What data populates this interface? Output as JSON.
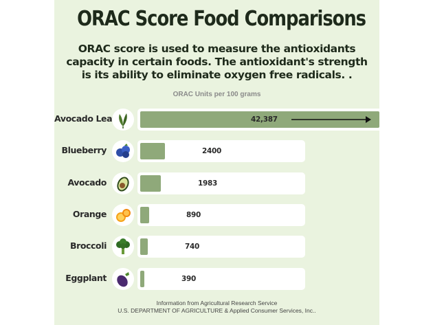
{
  "chart_data": {
    "type": "bar",
    "orientation": "horizontal",
    "title": "ORAC Score Food Comparisons",
    "subtitle": "ORAC score is used to measure the antioxidants capacity in certain foods. The antioxidant's strength is its ability to eliminate oxygen free radicals. .",
    "units_label": "ORAC Units per 100 grams",
    "categories": [
      "Avocado Leaf",
      "Blueberry",
      "Avocado",
      "Orange",
      "Broccoli",
      "Eggplant"
    ],
    "values": [
      42387,
      2400,
      1983,
      890,
      740,
      390
    ],
    "value_labels": [
      "42,387",
      "2400",
      "1983",
      "890",
      "740",
      "390"
    ],
    "icons": [
      "leaf-icon",
      "blueberry-icon",
      "avocado-icon",
      "orange-icon",
      "broccoli-icon",
      "eggplant-icon"
    ],
    "xlim": [
      0,
      9000
    ],
    "grid": false,
    "colors": {
      "bar": "#8fa97a",
      "track": "#ffffff",
      "background": "#eaf3df"
    }
  },
  "footer": {
    "line1": "Information from Agricultural Research Service",
    "line2": "U.S. DEPARTMENT OF AGRICULTURE & Applied Consumer Services, Inc.."
  }
}
